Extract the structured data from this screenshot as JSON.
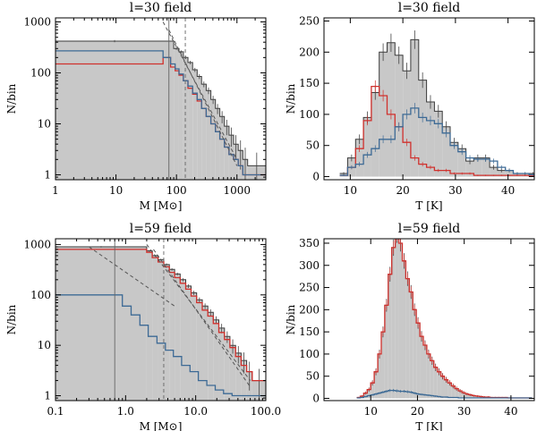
{
  "colors": {
    "fill": "#c8c8c8",
    "total": "#3a3a3a",
    "red": "#d0312d",
    "blue": "#3d6a95",
    "dashed": "#555555"
  },
  "chart_data": [
    {
      "id": "mass-l30",
      "type": "histogram",
      "title": "l=30 field",
      "xlabel": "M [M⊙]",
      "ylabel": "N/bin",
      "xscale": "log",
      "yscale": "log",
      "xlim": [
        1,
        3000
      ],
      "ylim": [
        0.8,
        1200
      ],
      "xticks": [
        1,
        10,
        100,
        1000
      ],
      "xticklabels": [
        "1",
        "10",
        "100",
        "1000"
      ],
      "yticks": [
        1,
        10,
        100,
        1000
      ],
      "yticklabels": [
        "1",
        "10",
        "100",
        "1000"
      ],
      "vlines": [
        {
          "x": 75,
          "style": "solid"
        },
        {
          "x": 140,
          "style": "dashed"
        }
      ],
      "fits": [
        {
          "x": [
            60,
            1000
          ],
          "y": [
            1000,
            2
          ]
        },
        {
          "x": [
            75,
            1000
          ],
          "y": [
            700,
            1.5
          ]
        }
      ],
      "total_bar_edges": [
        1,
        90,
        110,
        130,
        155,
        185,
        220,
        260,
        310,
        370,
        440,
        520,
        620,
        740,
        880,
        1050,
        1250,
        1500,
        3000
      ],
      "total_bar_values": [
        420,
        300,
        260,
        200,
        160,
        115,
        85,
        60,
        45,
        30,
        20,
        14,
        9,
        6,
        4,
        3,
        2,
        1.5
      ],
      "series": [
        {
          "name": "red",
          "color": "#d0312d",
          "edges": [
            1,
            60,
            80,
            95,
            110,
            130,
            155,
            185,
            220,
            260,
            310,
            370,
            440,
            520,
            620,
            740,
            880,
            1050,
            1250,
            1500,
            3000
          ],
          "values": [
            150,
            200,
            130,
            110,
            90,
            70,
            50,
            38,
            28,
            20,
            14,
            10,
            7,
            5,
            3.5,
            2.5,
            2,
            1.5,
            1,
            1
          ]
        },
        {
          "name": "blue",
          "color": "#3d6a95",
          "edges": [
            1,
            60,
            80,
            95,
            110,
            130,
            155,
            185,
            220,
            260,
            310,
            370,
            440,
            520,
            620,
            740,
            880,
            1050,
            1250,
            1500,
            3000
          ],
          "values": [
            270,
            200,
            150,
            120,
            95,
            70,
            55,
            40,
            30,
            20,
            14,
            10,
            7,
            5,
            3.5,
            2.5,
            2,
            1.5,
            1,
            1
          ]
        }
      ]
    },
    {
      "id": "temp-l30",
      "type": "histogram",
      "title": "l=30 field",
      "xlabel": "T [K]",
      "ylabel": "N/bin",
      "xscale": "linear",
      "yscale": "linear",
      "xlim": [
        5,
        45
      ],
      "ylim": [
        -5,
        255
      ],
      "xticks": [
        10,
        20,
        30,
        40
      ],
      "xticklabels": [
        "10",
        "20",
        "30",
        "40"
      ],
      "yticks": [
        0,
        50,
        100,
        150,
        200,
        250
      ],
      "yticklabels": [
        "0",
        "50",
        "100",
        "150",
        "200",
        "250"
      ],
      "bin_start": 8,
      "bin_width": 1.5,
      "total_values": [
        5,
        30,
        60,
        95,
        135,
        200,
        215,
        195,
        170,
        220,
        155,
        120,
        105,
        80,
        55,
        45,
        25,
        30,
        30,
        15,
        10,
        10,
        5,
        5,
        5
      ],
      "series": [
        {
          "name": "red",
          "color": "#d0312d",
          "values": [
            2,
            15,
            45,
            90,
            145,
            130,
            100,
            80,
            55,
            30,
            20,
            15,
            10,
            10,
            5,
            5,
            5,
            2,
            2,
            2,
            2,
            2,
            2,
            2,
            1
          ]
        },
        {
          "name": "blue",
          "color": "#3d6a95",
          "values": [
            2,
            15,
            20,
            35,
            45,
            60,
            60,
            80,
            100,
            110,
            95,
            90,
            85,
            70,
            50,
            40,
            30,
            28,
            28,
            25,
            15,
            10,
            5,
            5,
            3
          ]
        }
      ]
    },
    {
      "id": "mass-l59",
      "type": "histogram",
      "title": "l=59 field",
      "xlabel": "M [M⊙]",
      "ylabel": "N/bin",
      "xscale": "log",
      "yscale": "log",
      "xlim": [
        0.1,
        100
      ],
      "ylim": [
        0.8,
        1300
      ],
      "xticks": [
        0.1,
        1,
        10,
        100
      ],
      "xticklabels": [
        "0.1",
        "1.0",
        "10.0",
        "100.0"
      ],
      "yticks": [
        1,
        10,
        100,
        1000
      ],
      "yticklabels": [
        "1",
        "10",
        "100",
        "1000"
      ],
      "vlines": [
        {
          "x": 0.7,
          "style": "solid"
        },
        {
          "x": 3.5,
          "style": "dashed"
        }
      ],
      "fits": [
        {
          "x": [
            0.3,
            5
          ],
          "y": [
            900,
            60
          ]
        },
        {
          "x": [
            2,
            60
          ],
          "y": [
            1000,
            2
          ]
        },
        {
          "x": [
            2.5,
            60
          ],
          "y": [
            800,
            1.5
          ]
        }
      ],
      "total_bar_edges": [
        0.1,
        2,
        2.4,
        2.9,
        3.5,
        4.2,
        5,
        6,
        7.2,
        8.6,
        10.3,
        12.4,
        14.9,
        17.8,
        21.4,
        25.7,
        30.8,
        37,
        44.4,
        53.3,
        64,
        100
      ],
      "total_bar_values": [
        900,
        750,
        600,
        500,
        400,
        320,
        260,
        200,
        150,
        110,
        80,
        60,
        45,
        32,
        22,
        15,
        10,
        7,
        5,
        3,
        2
      ],
      "series": [
        {
          "name": "red",
          "color": "#d0312d",
          "edges": [
            0.1,
            2,
            2.4,
            2.9,
            3.5,
            4.2,
            5,
            6,
            7.2,
            8.6,
            10.3,
            12.4,
            14.9,
            17.8,
            21.4,
            25.7,
            30.8,
            37,
            44.4,
            53.3,
            64,
            100
          ],
          "values": [
            800,
            700,
            550,
            450,
            360,
            280,
            220,
            170,
            130,
            95,
            70,
            50,
            38,
            27,
            18,
            13,
            9,
            6,
            4,
            3,
            2
          ]
        },
        {
          "name": "blue",
          "color": "#3d6a95",
          "edges": [
            0.1,
            0.9,
            1.2,
            1.6,
            2.1,
            2.8,
            3.7,
            4.8,
            6.3,
            8.3,
            10.9,
            14.4,
            19,
            25,
            33,
            100
          ],
          "values": [
            100,
            60,
            40,
            25,
            15,
            11,
            8,
            6,
            4,
            3,
            2,
            1.6,
            1.3,
            1.1,
            1
          ]
        }
      ]
    },
    {
      "id": "temp-l59",
      "type": "histogram",
      "title": "l=59 field",
      "xlabel": "T [K]",
      "ylabel": "N/bin",
      "xscale": "linear",
      "yscale": "linear",
      "xlim": [
        0,
        45
      ],
      "ylim": [
        -5,
        360
      ],
      "xticks": [
        10,
        20,
        30,
        40
      ],
      "xticklabels": [
        "10",
        "20",
        "30",
        "40"
      ],
      "yticks": [
        0,
        50,
        100,
        150,
        200,
        250,
        300,
        350
      ],
      "yticklabels": [
        "0",
        "50",
        "100",
        "150",
        "200",
        "250",
        "300",
        "350"
      ],
      "bin_start": 7,
      "bin_width": 0.75,
      "total_values": [
        2,
        5,
        12,
        20,
        35,
        60,
        100,
        150,
        210,
        280,
        340,
        370,
        350,
        310,
        270,
        240,
        200,
        170,
        140,
        120,
        100,
        85,
        70,
        60,
        50,
        42,
        35,
        28,
        22,
        17,
        13,
        10,
        8,
        6,
        5,
        4,
        3,
        3,
        2,
        2,
        2,
        2,
        2,
        1,
        1,
        1,
        1,
        1,
        1,
        1
      ],
      "series": [
        {
          "name": "red",
          "color": "#d0312d",
          "values": [
            2,
            5,
            12,
            20,
            35,
            60,
            100,
            150,
            210,
            280,
            340,
            370,
            350,
            310,
            270,
            240,
            200,
            170,
            140,
            120,
            100,
            85,
            70,
            60,
            50,
            42,
            35,
            28,
            22,
            17,
            13,
            10,
            8,
            6,
            5,
            4,
            3,
            3,
            2,
            2,
            2,
            2,
            2,
            1,
            1,
            1,
            1,
            1,
            1,
            1
          ]
        },
        {
          "name": "blue",
          "color": "#3d6a95",
          "values": [
            1,
            2,
            4,
            6,
            8,
            10,
            12,
            14,
            16,
            18,
            18,
            17,
            16,
            16,
            15,
            14,
            12,
            10,
            9,
            8,
            7,
            6,
            5,
            4,
            3,
            3,
            2,
            2,
            2,
            1,
            1,
            1,
            1,
            1,
            1,
            1,
            1,
            1,
            1,
            1,
            1,
            1,
            1,
            1,
            1,
            1,
            1,
            1,
            1,
            1
          ]
        }
      ]
    }
  ]
}
